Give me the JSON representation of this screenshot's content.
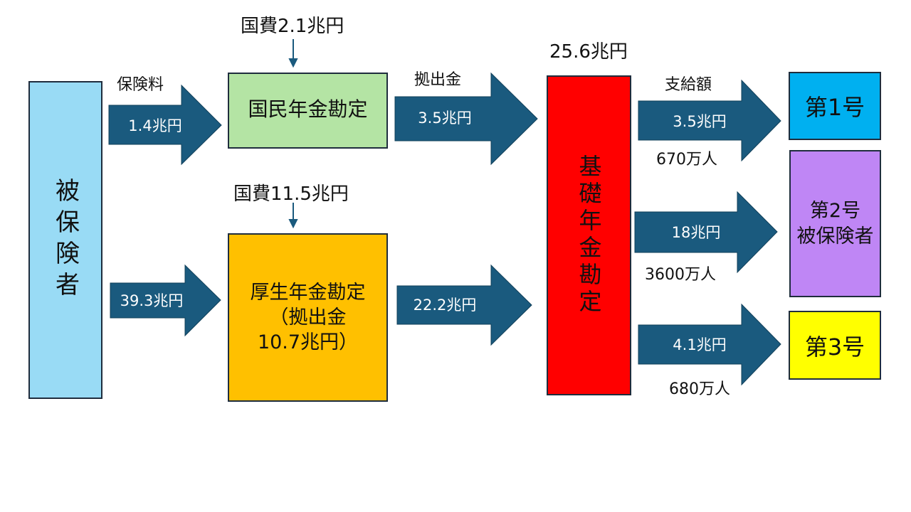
{
  "colors": {
    "arrow": "#1a5a7e",
    "insured": "#99dbf5",
    "national_pension": "#b4e4a4",
    "employees_pension": "#ffc000",
    "basic_pension": "#ff0000",
    "category1": "#00b0f0",
    "category2": "#bf86f5",
    "category3": "#ffff00"
  },
  "boxes": {
    "insured": "被保険者",
    "national_pension": "国民年金勘定",
    "employees_pension_line1": "厚生年金勘定",
    "employees_pension_line2": "（拠出金",
    "employees_pension_line3": "10.7兆円）",
    "basic_pension": "基礎年金勘定",
    "category1": "第1号",
    "category2_line1": "第2号",
    "category2_line2": "被保険者",
    "category3": "第3号"
  },
  "labels": {
    "premium": "保険料",
    "state_funds_national": "国費2.1兆円",
    "state_funds_employees": "国費11.5兆円",
    "contribution": "拠出金",
    "basic_total": "25.6兆円",
    "benefits": "支給額",
    "people1": "670万人",
    "people2": "3600万人",
    "people3": "680万人"
  },
  "arrows": {
    "premium_national": "1.4兆円",
    "premium_employees": "39.3兆円",
    "contribution_national": "3.5兆円",
    "contribution_employees": "22.2兆円",
    "benefit1": "3.5兆円",
    "benefit2": "18兆円",
    "benefit3": "4.1兆円"
  }
}
